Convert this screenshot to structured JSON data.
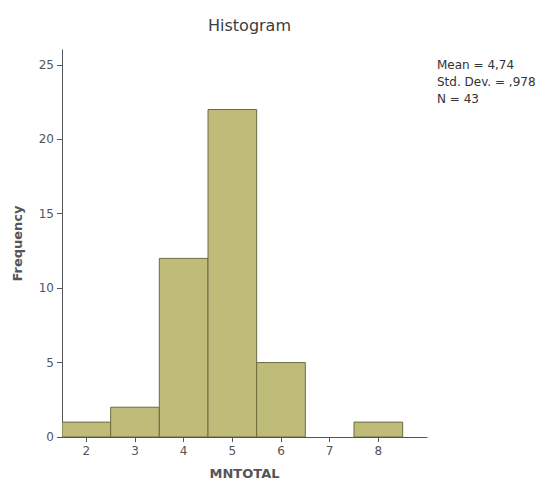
{
  "chart_data": {
    "type": "bar",
    "title": "Histogram",
    "xlabel": "MNTOTAL",
    "ylabel": "Frequency",
    "x": [
      2,
      3,
      4,
      5,
      6,
      8
    ],
    "values": [
      1,
      2,
      12,
      22,
      5,
      1
    ],
    "color": "#bfbc7a",
    "xlim": [
      1.5,
      9.0
    ],
    "xticks": [
      2,
      3,
      4,
      5,
      6,
      7,
      8
    ],
    "ylim": [
      0,
      26
    ],
    "yticks": [
      0,
      5,
      10,
      15,
      20,
      25
    ],
    "grid": false,
    "annotation": "Mean = 4,74\nStd. Dev. = ,978\nN = 43"
  }
}
